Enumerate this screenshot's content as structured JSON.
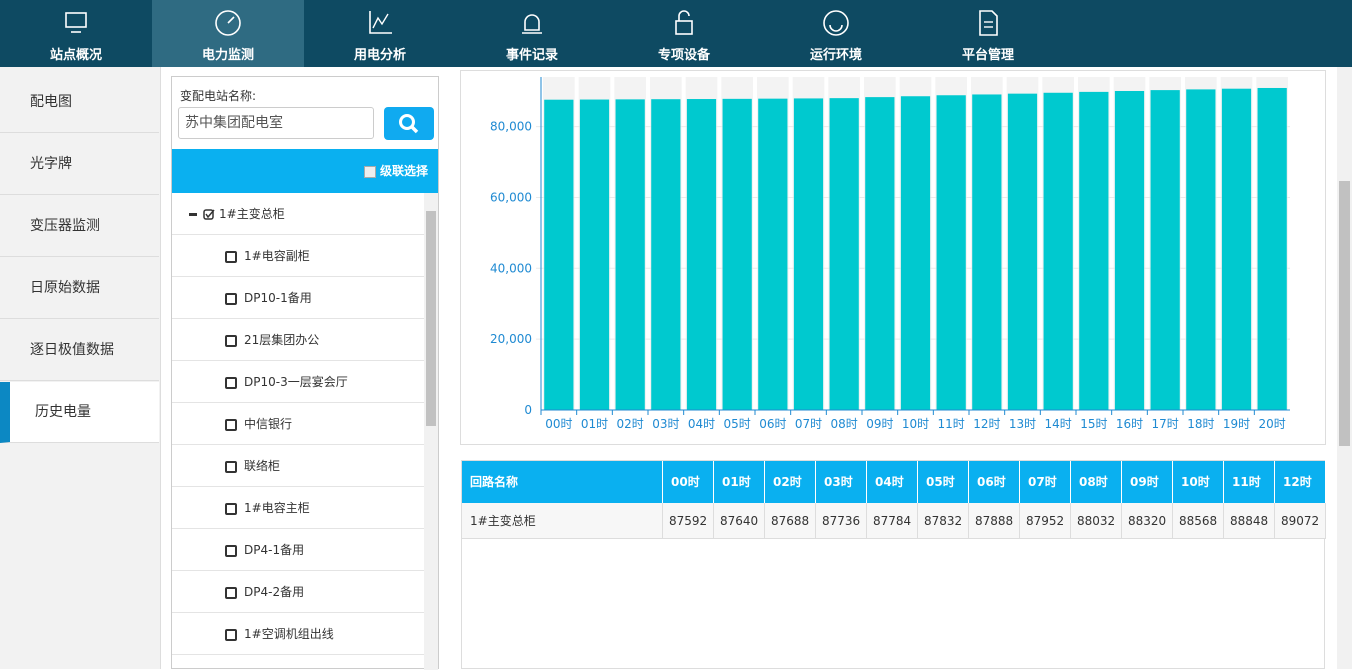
{
  "nav": [
    "站点概况",
    "电力监测",
    "用电分析",
    "事件记录",
    "专项设备",
    "运行环境",
    "平台管理"
  ],
  "sidebar": [
    "配电图",
    "光字牌",
    "变压器监测",
    "日原始数据",
    "逐日极值数据",
    "历史电量"
  ],
  "search": {
    "label": "变配电站名称:",
    "value": "苏中集团配电室"
  },
  "cascade": "级联选择",
  "tree": {
    "root": "1#主变总柜",
    "children": [
      "1#电容副柜",
      "DP10-1备用",
      "21层集团办公",
      "DP10-3一层宴会厅",
      "中信银行",
      "联络柜",
      "1#电容主柜",
      "DP4-1备用",
      "DP4-2备用",
      "1#空调机组出线"
    ]
  },
  "chart_data": {
    "type": "bar",
    "categories": [
      "00时",
      "01时",
      "02时",
      "03时",
      "04时",
      "05时",
      "06时",
      "07时",
      "08时",
      "09时",
      "10时",
      "11时",
      "12时",
      "13时",
      "14时",
      "15时",
      "16时",
      "17时",
      "18时",
      "19时",
      "20时"
    ],
    "values": [
      87592,
      87640,
      87688,
      87736,
      87784,
      87832,
      87888,
      87952,
      88032,
      88320,
      88568,
      88848,
      89072,
      89300,
      89550,
      89800,
      90050,
      90300,
      90500,
      90700,
      90900
    ],
    "color": "#00c9cf",
    "ylim": [
      0,
      94000
    ],
    "yticks": [
      0,
      {
        "value": 20000,
        "label": "20,000"
      },
      {
        "value": 40000,
        "label": "40,000"
      },
      {
        "value": 60000,
        "label": "60,000"
      },
      {
        "value": 80000,
        "label": "80,000"
      }
    ]
  },
  "table": {
    "header": [
      "回路名称",
      "00时",
      "01时",
      "02时",
      "03时",
      "04时",
      "05时",
      "06时",
      "07时",
      "08时",
      "09时",
      "10时",
      "11时",
      "12时"
    ],
    "rows": [
      [
        "1#主变总柜",
        "87592",
        "87640",
        "87688",
        "87736",
        "87784",
        "87832",
        "87888",
        "87952",
        "88032",
        "88320",
        "88568",
        "88848",
        "89072"
      ]
    ]
  }
}
